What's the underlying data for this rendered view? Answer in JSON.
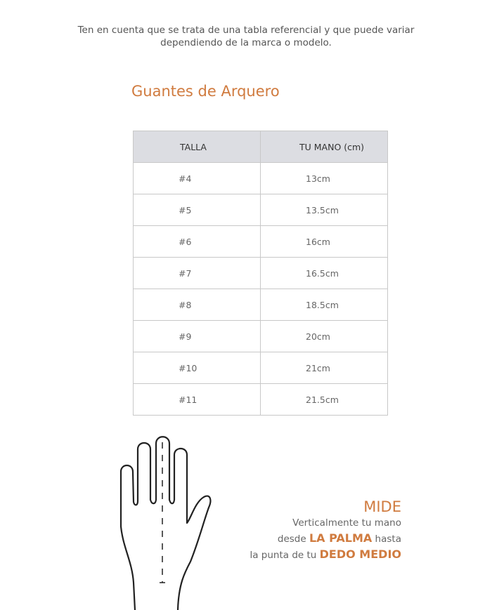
{
  "note": {
    "line1": "Ten en cuenta que se trata de una tabla referencial y que puede variar",
    "line2": "dependiendo de la marca o modelo."
  },
  "title": "Guantes de Arquero",
  "table": {
    "headers": [
      "TALLA",
      "TU MANO (cm)"
    ],
    "rows": [
      [
        "#4",
        "13cm"
      ],
      [
        "#5",
        "13.5cm"
      ],
      [
        "#6",
        "16cm"
      ],
      [
        "#7",
        "16.5cm"
      ],
      [
        "#8",
        "18.5cm"
      ],
      [
        "#9",
        "20cm"
      ],
      [
        "#10",
        "21cm"
      ],
      [
        "#11",
        "21.5cm"
      ]
    ]
  },
  "instructions": {
    "heading": "MIDE",
    "line1": "Verticalmente tu mano",
    "line2_pre": "desde ",
    "line2_em": "LA PALMA",
    "line2_post": " hasta",
    "line3_pre": "la punta de tu ",
    "line3_em": "DEDO MEDIO"
  },
  "colors": {
    "accent": "#d07b3f",
    "header_bg": "#dcdde2"
  },
  "illustration": "hand-outline-icon"
}
